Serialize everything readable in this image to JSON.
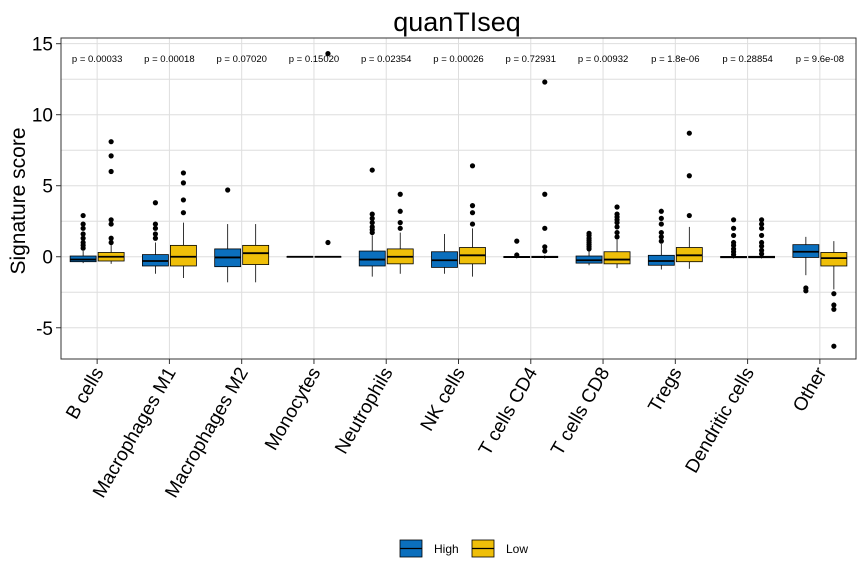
{
  "chart_data": {
    "type": "box",
    "title": "quanTIseq",
    "xlabel": "",
    "ylabel": "Signature score",
    "ylim": [
      -7.2,
      15.4
    ],
    "yticks": [
      -5,
      0,
      5,
      10,
      15
    ],
    "grid": true,
    "legend_position": "bottom",
    "categories": [
      "B cells",
      "Macrophages M1",
      "Macrophages M2",
      "Monocytes",
      "Neutrophils",
      "NK cells",
      "T cells CD4",
      "T cells CD8",
      "Tregs",
      "Dendritic cells",
      "Other"
    ],
    "p_values": [
      "p = 0.00033",
      "p = 0.00018",
      "p = 0.07020",
      "p = 0.15020",
      "p = 0.02354",
      "p = 0.00026",
      "p = 0.72931",
      "p = 0.00932",
      "p = 1.8e-06",
      "p = 0.28854",
      "p = 9.6e-08"
    ],
    "series": [
      {
        "name": "High",
        "color": "#0b6fbd",
        "boxes": [
          {
            "min": -0.45,
            "q1": -0.35,
            "median": -0.2,
            "q3": 0.05,
            "max": 0.4,
            "outliers": [
              0.6,
              0.8,
              1.0,
              1.3,
              1.6,
              2.0,
              2.3,
              2.9
            ]
          },
          {
            "min": -1.2,
            "q1": -0.65,
            "median": -0.3,
            "q3": 0.15,
            "max": 1.0,
            "outliers": [
              1.3,
              1.6,
              2.0,
              2.3,
              3.8
            ]
          },
          {
            "min": -1.8,
            "q1": -0.7,
            "median": -0.05,
            "q3": 0.55,
            "max": 2.3,
            "outliers": [
              4.7
            ]
          },
          {
            "min": -0.03,
            "q1": -0.02,
            "median": 0.0,
            "q3": 0.02,
            "max": 0.03,
            "outliers": []
          },
          {
            "min": -1.4,
            "q1": -0.65,
            "median": -0.2,
            "q3": 0.4,
            "max": 1.5,
            "outliers": [
              1.7,
              1.9,
              2.1,
              2.4,
              2.7,
              3.0,
              6.1
            ]
          },
          {
            "min": -1.2,
            "q1": -0.75,
            "median": -0.25,
            "q3": 0.35,
            "max": 1.6,
            "outliers": []
          },
          {
            "min": -0.12,
            "q1": -0.06,
            "median": -0.02,
            "q3": 0.02,
            "max": 0.07,
            "outliers": [
              0.12,
              1.1
            ]
          },
          {
            "min": -0.6,
            "q1": -0.45,
            "median": -0.25,
            "q3": 0.05,
            "max": 0.45,
            "outliers": [
              0.55,
              0.7,
              0.85,
              1.0,
              1.15,
              1.3,
              1.5,
              1.65
            ]
          },
          {
            "min": -0.9,
            "q1": -0.6,
            "median": -0.3,
            "q3": 0.1,
            "max": 0.9,
            "outliers": [
              1.1,
              1.4,
              1.7,
              2.3,
              2.7,
              3.2
            ]
          },
          {
            "min": -0.12,
            "q1": -0.07,
            "median": -0.03,
            "q3": 0.02,
            "max": 0.07,
            "outliers": [
              0.15,
              0.35,
              0.55,
              0.8,
              1.0,
              1.5,
              2.0,
              2.6
            ]
          },
          {
            "min": -1.3,
            "q1": -0.05,
            "median": 0.35,
            "q3": 0.85,
            "max": 1.4,
            "outliers": [
              -2.2,
              -2.4
            ]
          }
        ]
      },
      {
        "name": "Low",
        "color": "#efbf09",
        "boxes": [
          {
            "min": -0.5,
            "q1": -0.3,
            "median": 0.0,
            "q3": 0.3,
            "max": 0.9,
            "outliers": [
              1.0,
              1.3,
              2.3,
              2.6,
              6.0,
              7.1,
              8.1
            ]
          },
          {
            "min": -1.5,
            "q1": -0.65,
            "median": 0.0,
            "q3": 0.8,
            "max": 2.4,
            "outliers": [
              3.1,
              4.0,
              5.2,
              5.9
            ]
          },
          {
            "min": -1.8,
            "q1": -0.55,
            "median": 0.25,
            "q3": 0.8,
            "max": 2.3,
            "outliers": []
          },
          {
            "min": -0.04,
            "q1": -0.03,
            "median": 0.0,
            "q3": 0.02,
            "max": 0.04,
            "outliers": [
              1.0,
              14.3
            ]
          },
          {
            "min": -1.2,
            "q1": -0.5,
            "median": 0.0,
            "q3": 0.55,
            "max": 1.7,
            "outliers": [
              2.0,
              2.4,
              3.2,
              4.4
            ]
          },
          {
            "min": -1.4,
            "q1": -0.5,
            "median": 0.1,
            "q3": 0.65,
            "max": 2.0,
            "outliers": [
              2.3,
              3.1,
              3.6,
              6.4
            ]
          },
          {
            "min": -0.12,
            "q1": -0.06,
            "median": -0.02,
            "q3": 0.03,
            "max": 0.1,
            "outliers": [
              0.4,
              0.7,
              2.0,
              4.4,
              12.3
            ]
          },
          {
            "min": -0.8,
            "q1": -0.5,
            "median": -0.2,
            "q3": 0.35,
            "max": 1.2,
            "outliers": [
              1.4,
              1.7,
              2.1,
              2.4,
              2.6,
              2.8,
              3.0,
              3.5
            ]
          },
          {
            "min": -0.85,
            "q1": -0.35,
            "median": 0.1,
            "q3": 0.65,
            "max": 2.1,
            "outliers": [
              2.9,
              5.7,
              8.7
            ]
          },
          {
            "min": -0.12,
            "q1": -0.07,
            "median": -0.03,
            "q3": 0.03,
            "max": 0.1,
            "outliers": [
              0.2,
              0.45,
              0.75,
              1.0,
              1.5,
              2.0,
              2.3,
              2.6
            ]
          },
          {
            "min": -2.3,
            "q1": -0.65,
            "median": -0.1,
            "q3": 0.3,
            "max": 1.1,
            "outliers": [
              -2.6,
              -3.4,
              -3.7,
              -6.3
            ]
          }
        ]
      }
    ]
  }
}
